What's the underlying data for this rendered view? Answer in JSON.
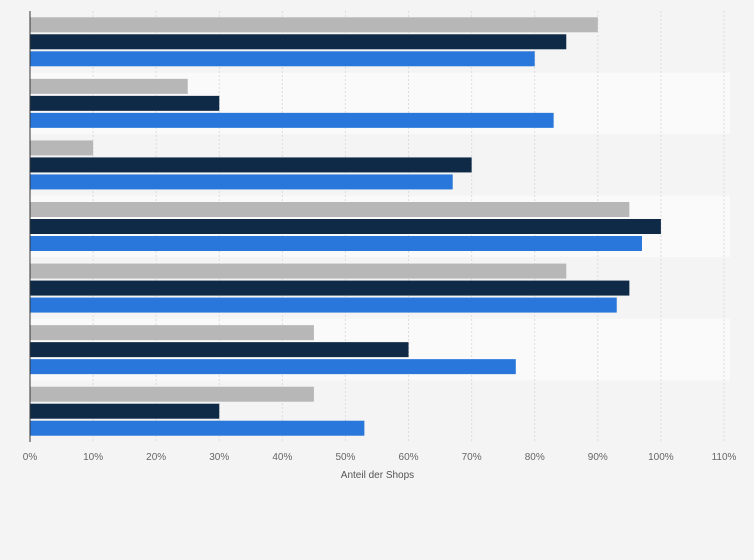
{
  "chart_data": {
    "type": "bar",
    "orientation": "horizontal",
    "xlabel": "Anteil der Shops",
    "xlim": [
      0,
      110
    ],
    "x_ticks": [
      0,
      10,
      20,
      30,
      40,
      50,
      60,
      70,
      80,
      90,
      100,
      110
    ],
    "x_tick_labels": [
      "0%",
      "10%",
      "20%",
      "30%",
      "40%",
      "50%",
      "60%",
      "70%",
      "80%",
      "90%",
      "100%",
      "110%"
    ],
    "grid": true,
    "category_labels_visible": false,
    "categories": [
      "",
      "",
      "",
      "",
      "",
      "",
      ""
    ],
    "series": [
      {
        "color": "#b7b7b7",
        "values": [
          90,
          25,
          10,
          95,
          85,
          45,
          45
        ]
      },
      {
        "color": "#0f2a47",
        "values": [
          85,
          30,
          70,
          100,
          95,
          60,
          30
        ]
      },
      {
        "color": "#2a77db",
        "values": [
          80,
          83,
          67,
          97,
          93,
          77,
          53
        ]
      }
    ]
  }
}
